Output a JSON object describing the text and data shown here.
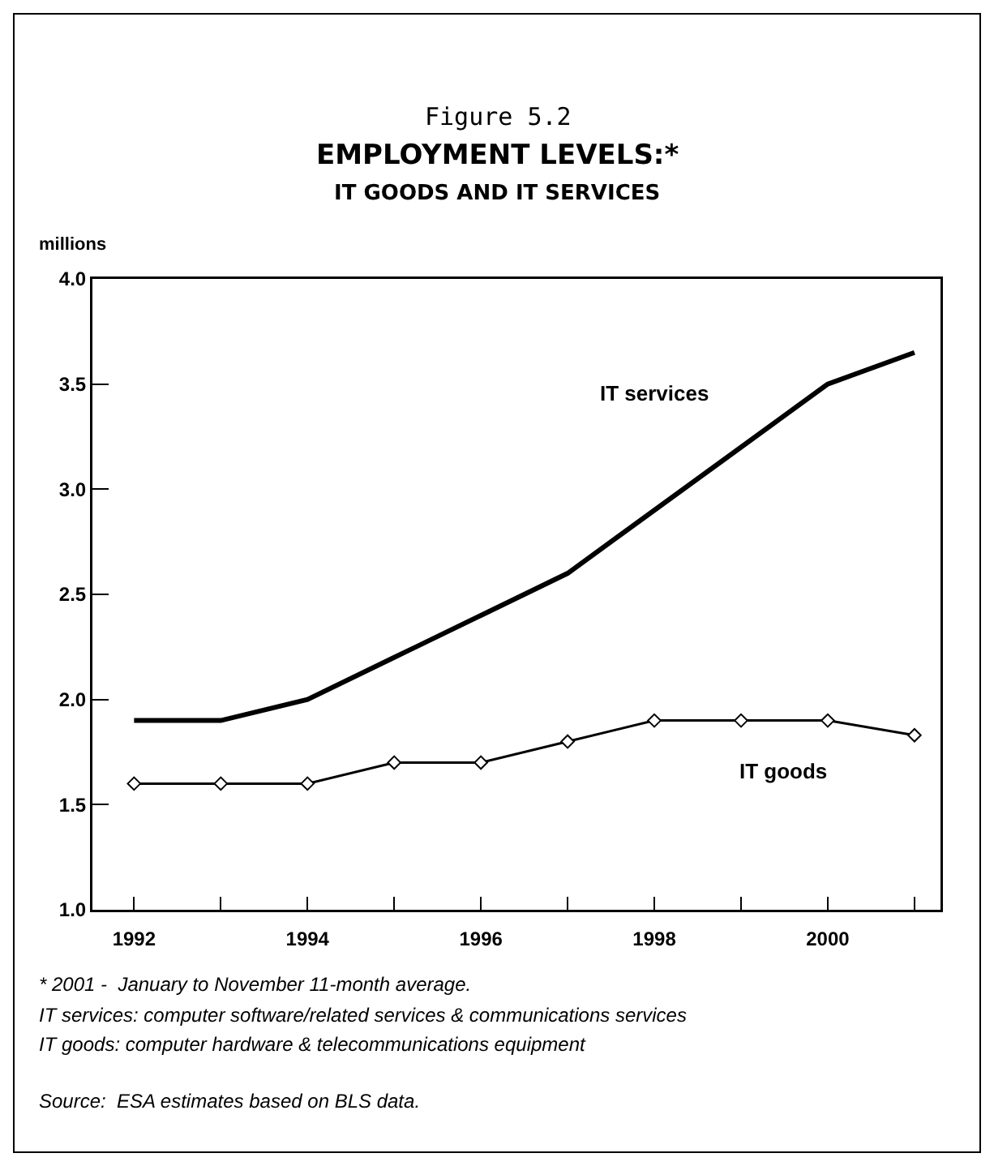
{
  "chart_data": {
    "type": "line",
    "title": "Figure 5.2",
    "subtitle": "EMPLOYMENT LEVELS:*\nIT GOODS AND IT SERVICES",
    "ylabel": "millions",
    "x": [
      1992,
      1993,
      1994,
      1995,
      1996,
      1997,
      1998,
      1999,
      2000,
      2001
    ],
    "series": [
      {
        "name": "IT services",
        "color": "#000000",
        "marker": "none",
        "line_style": "solid",
        "values": [
          1.9,
          1.9,
          2.0,
          2.2,
          2.4,
          2.6,
          2.9,
          3.2,
          3.5,
          3.65
        ]
      },
      {
        "name": "IT goods",
        "color": "#000000",
        "marker": "diamond",
        "line_style": "solid",
        "values": [
          1.6,
          1.6,
          1.6,
          1.7,
          1.7,
          1.8,
          1.9,
          1.9,
          1.9,
          1.83
        ]
      }
    ],
    "xlim": [
      1991.52,
      2001.3
    ],
    "xticks": [
      1992,
      {
        "value": 1993,
        "label": null
      },
      1994,
      {
        "value": 1995,
        "label": null
      },
      1996,
      {
        "value": 1997,
        "label": null
      },
      1998,
      {
        "value": 1999,
        "label": null
      },
      2000,
      {
        "value": 2001,
        "label": null
      }
    ],
    "ylim": [
      1,
      4
    ],
    "yticks": [
      {
        "value": 1,
        "label": "1.0"
      },
      1.5,
      {
        "value": 2,
        "label": "2.0"
      },
      2.5,
      {
        "value": 3,
        "label": "3.0"
      },
      3.5,
      {
        "value": 4,
        "label": "4.0"
      }
    ],
    "grid": false,
    "legend": false,
    "annotations": [
      "* 2001 -  January to November 11-month average.",
      "IT services: computer software/related services & communications services",
      "IT goods: computer hardware & telecommunications equipment",
      "Source:  ESA estimates based on BLS data."
    ]
  }
}
